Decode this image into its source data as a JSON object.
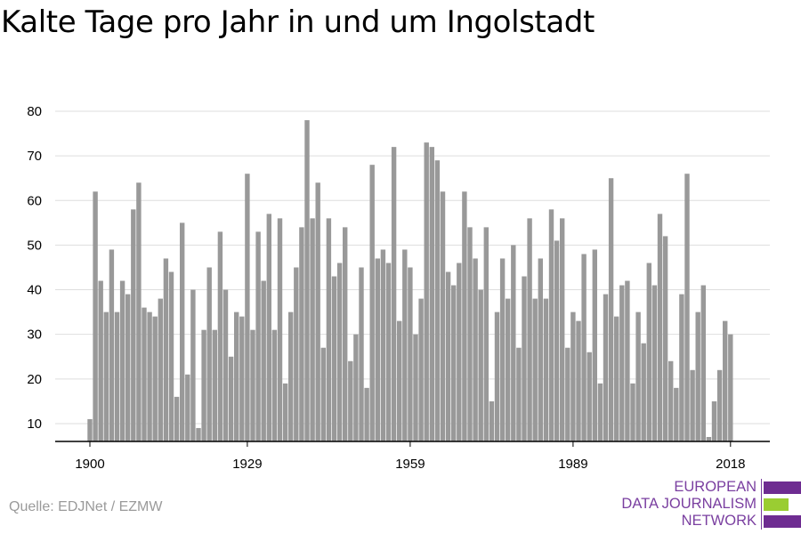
{
  "title": "Kalte Tage pro Jahr in und um Ingolstadt",
  "source": "Quelle: EDJNet / EZMW",
  "logo": {
    "lines": [
      "EUROPEAN",
      "DATA JOURNALISM",
      "NETWORK"
    ],
    "colors": [
      "#6e2c91",
      "#9acd32",
      "#6e2c91"
    ]
  },
  "colors": {
    "bar": "#999999",
    "grid": "#dedede",
    "axis": "#000000",
    "logo_text": "#7a3fa0"
  },
  "chart_data": {
    "type": "bar",
    "title": "Kalte Tage pro Jahr in und um Ingolstadt",
    "xlabel": "",
    "ylabel": "",
    "x_ticks": [
      1900,
      1929,
      1959,
      1989,
      2018
    ],
    "y_ticks": [
      10,
      20,
      30,
      40,
      50,
      60,
      70,
      80
    ],
    "ylim": [
      6,
      82
    ],
    "grid": true,
    "series": [
      {
        "x_start": 1900,
        "values": [
          11,
          62,
          42,
          35,
          49,
          35,
          42,
          39,
          58,
          64,
          36,
          35,
          34,
          38,
          47,
          44,
          16,
          55,
          21,
          40,
          9,
          31,
          45,
          31,
          53,
          40,
          25,
          35,
          34,
          66,
          31,
          53,
          42,
          57,
          31,
          56,
          19,
          35,
          45,
          54,
          78,
          56,
          64,
          27,
          56,
          43,
          46,
          54,
          24,
          30,
          45,
          18,
          68,
          47,
          49,
          46,
          72,
          33,
          49,
          45,
          30,
          38,
          73,
          72,
          69,
          62,
          44,
          41,
          46,
          62,
          54,
          47,
          40,
          54,
          15,
          35,
          47,
          38,
          50,
          27,
          43,
          56,
          38,
          47,
          38,
          58,
          51,
          56,
          27,
          35,
          33,
          48,
          26,
          49,
          19,
          39,
          65,
          34,
          41,
          42,
          19,
          35,
          28,
          46,
          41,
          57,
          52,
          24,
          18,
          39,
          66,
          22,
          35,
          41,
          7,
          15,
          22,
          33,
          30
        ]
      }
    ]
  }
}
